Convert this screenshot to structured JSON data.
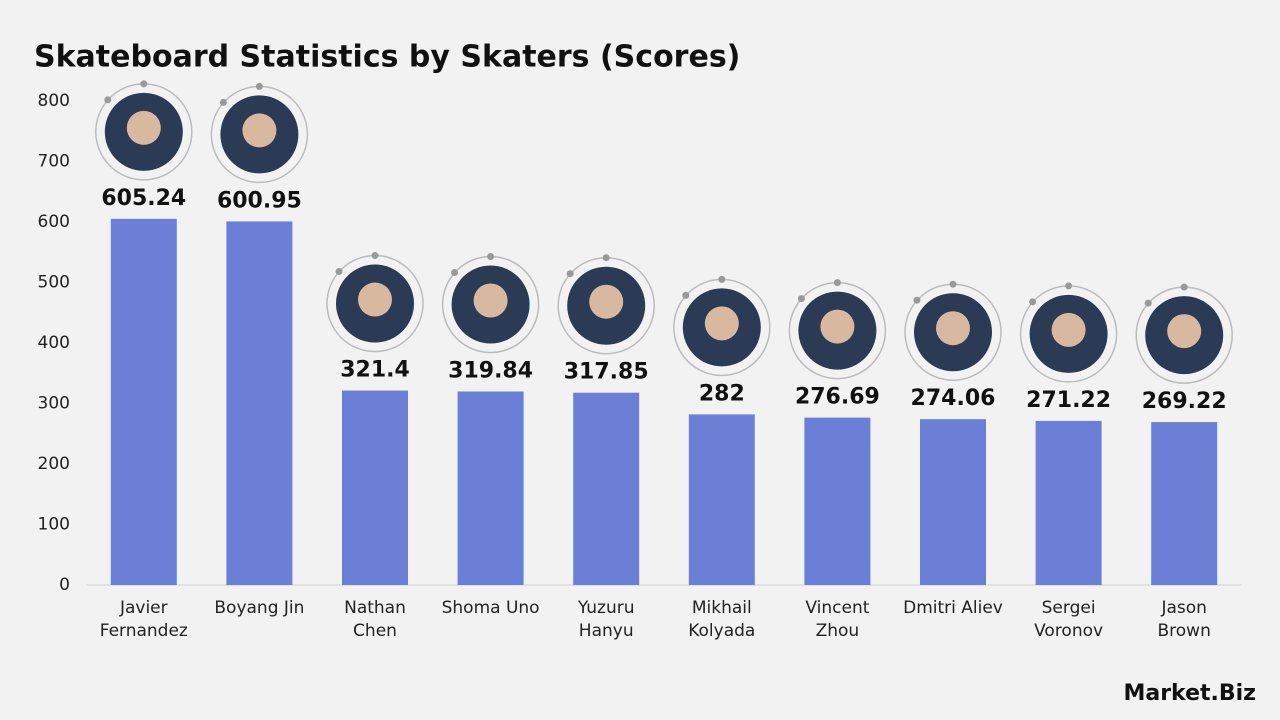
{
  "chart_data": {
    "type": "bar",
    "title": "Skateboard Statistics by Skaters (Scores)",
    "categories": [
      "Javier\nFernandez",
      "Boyang Jin",
      "Nathan\nChen",
      "Shoma Uno",
      "Yuzuru\nHanyu",
      "Mikhail\nKolyada",
      "Vincent\nZhou",
      "Dmitri Aliev",
      "Sergei\nVoronov",
      "Jason\nBrown"
    ],
    "values": [
      605.24,
      600.95,
      321.4,
      319.84,
      317.85,
      282,
      276.69,
      274.06,
      271.22,
      269.22
    ],
    "color": "#6b7fd7",
    "ylim": [
      0,
      800
    ],
    "yticks": [
      0,
      100,
      200,
      300,
      400,
      500,
      600,
      700,
      800
    ],
    "grid": false
  },
  "brand": "Market.Biz"
}
